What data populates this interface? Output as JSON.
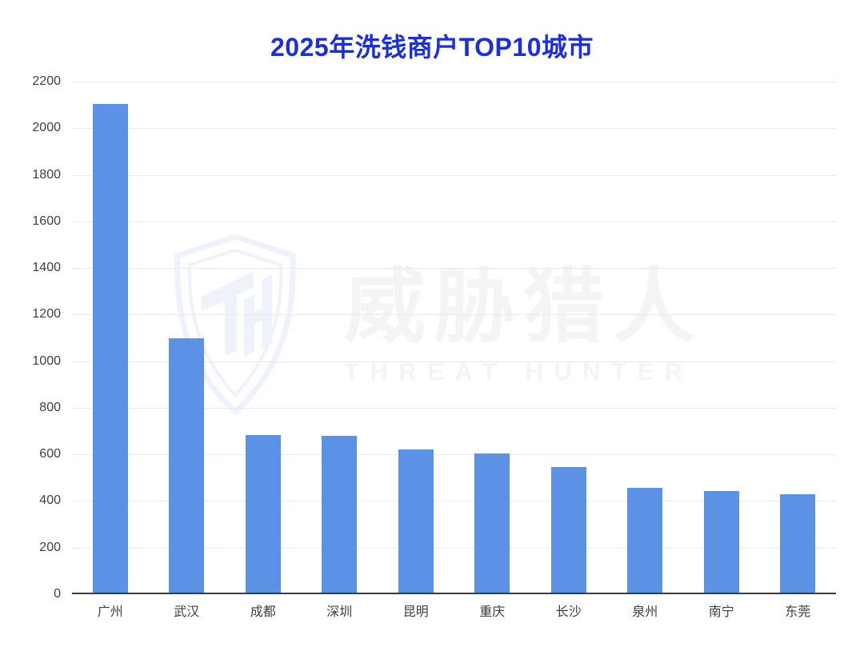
{
  "title": "2025年洗钱商户TOP10城市",
  "watermark": {
    "icon": "threat-hunter-shield-icon",
    "cn": "威胁猎人",
    "en": "THREAT HUNTER",
    "text_color": "#f4f4f6",
    "shield_color": "#edf2fb"
  },
  "chart_data": {
    "type": "bar",
    "title": "2025年洗钱商户TOP10城市",
    "categories": [
      "广州",
      "武汉",
      "成都",
      "深圳",
      "昆明",
      "重庆",
      "长沙",
      "泉州",
      "南宁",
      "东莞"
    ],
    "values": [
      2105,
      1095,
      680,
      675,
      618,
      600,
      540,
      450,
      438,
      422
    ],
    "xlabel": "",
    "ylabel": "",
    "ylim": [
      0,
      2200
    ],
    "yticks": [
      0,
      200,
      400,
      600,
      800,
      1000,
      1200,
      1400,
      1600,
      1800,
      2000,
      2200
    ],
    "grid": true,
    "legend": "none",
    "colors": {
      "bar": "#5c92e5",
      "title": "#1b2fe0",
      "gridline": "#e9e9e9",
      "axis_line": "#3c3c3c",
      "tick_label": "#3e3e3e"
    }
  }
}
